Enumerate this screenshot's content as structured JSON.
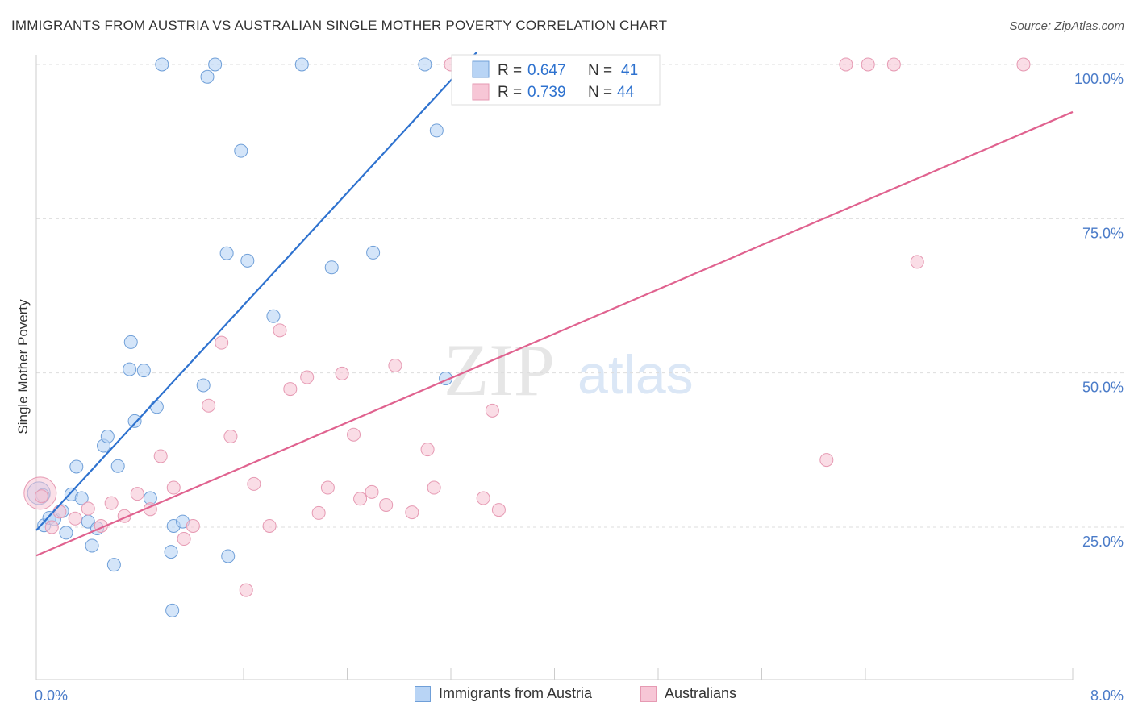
{
  "title": "IMMIGRANTS FROM AUSTRIA VS AUSTRALIAN SINGLE MOTHER POVERTY CORRELATION CHART",
  "source": "Source: ZipAtlas.com",
  "watermark": {
    "zip": "ZIP",
    "atlas": "atlas"
  },
  "colors": {
    "blue_fill": "#b8d4f5",
    "blue_stroke": "#6f9fd8",
    "blue_line": "#2e72cf",
    "pink_fill": "#f7c6d6",
    "pink_stroke": "#e69ab3",
    "pink_line": "#e0628f",
    "axis_label": "#4a7bc8",
    "grid": "#dddddd"
  },
  "legend_top": [
    {
      "r_label": "R = ",
      "r_value": "0.647",
      "n_label": "N = ",
      "n_value": "41"
    },
    {
      "r_label": "R = ",
      "r_value": "0.739",
      "n_label": "N = ",
      "n_value": "44"
    }
  ],
  "legend_bottom": [
    "Immigrants from Austria",
    "Australians"
  ],
  "chart_data": {
    "type": "scatter",
    "title": "IMMIGRANTS FROM AUSTRIA VS AUSTRALIAN SINGLE MOTHER POVERTY CORRELATION CHART",
    "xlabel": "",
    "ylabel": "Single Mother Poverty",
    "xlim": [
      0,
      8
    ],
    "ylim": [
      0,
      105
    ],
    "x_tick_labels": [
      "0.0%",
      "8.0%"
    ],
    "y_ticks": [
      25,
      50,
      75,
      100
    ],
    "y_tick_labels": [
      "25.0%",
      "50.0%",
      "75.0%",
      "100.0%"
    ],
    "grid": true,
    "legend_position": "top",
    "series": [
      {
        "name": "Immigrants from Austria",
        "r": 0.647,
        "n": 41,
        "trend": {
          "x": [
            0.0,
            3.4
          ],
          "y": [
            24.5,
            102
          ]
        },
        "points": [
          [
            0.05,
            30.2
          ],
          [
            0.06,
            25.3
          ],
          [
            0.1,
            26.5
          ],
          [
            0.14,
            26.3
          ],
          [
            0.2,
            27.6
          ],
          [
            0.23,
            24.1
          ],
          [
            0.27,
            30.3
          ],
          [
            0.31,
            34.8
          ],
          [
            0.35,
            29.7
          ],
          [
            0.4,
            25.9
          ],
          [
            0.43,
            22.0
          ],
          [
            0.47,
            24.8
          ],
          [
            0.52,
            38.2
          ],
          [
            0.55,
            39.7
          ],
          [
            0.6,
            18.9
          ],
          [
            0.63,
            34.9
          ],
          [
            0.72,
            50.6
          ],
          [
            0.73,
            55.0
          ],
          [
            0.76,
            42.2
          ],
          [
            0.83,
            50.4
          ],
          [
            0.88,
            29.7
          ],
          [
            0.93,
            44.5
          ],
          [
            0.97,
            100.0
          ],
          [
            1.04,
            21.0
          ],
          [
            1.05,
            11.5
          ],
          [
            1.06,
            25.2
          ],
          [
            1.13,
            25.9
          ],
          [
            1.29,
            48.0
          ],
          [
            1.32,
            98.0
          ],
          [
            1.38,
            100.0
          ],
          [
            1.47,
            69.4
          ],
          [
            1.48,
            20.3
          ],
          [
            1.58,
            86.0
          ],
          [
            1.63,
            68.2
          ],
          [
            1.83,
            59.2
          ],
          [
            2.05,
            100.0
          ],
          [
            2.28,
            67.1
          ],
          [
            2.6,
            69.5
          ],
          [
            3.0,
            100.0
          ],
          [
            3.09,
            89.3
          ],
          [
            3.16,
            49.1
          ]
        ]
      },
      {
        "name": "Australians",
        "r": 0.739,
        "n": 44,
        "trend": {
          "x": [
            0.0,
            8.0
          ],
          "y": [
            20.4,
            92.3
          ]
        },
        "points": [
          [
            0.04,
            30.0
          ],
          [
            0.12,
            25.0
          ],
          [
            0.18,
            27.5
          ],
          [
            0.3,
            26.4
          ],
          [
            0.4,
            28.0
          ],
          [
            0.5,
            25.2
          ],
          [
            0.58,
            28.9
          ],
          [
            0.68,
            26.8
          ],
          [
            0.78,
            30.4
          ],
          [
            0.88,
            27.9
          ],
          [
            0.96,
            36.5
          ],
          [
            1.06,
            31.4
          ],
          [
            1.14,
            23.1
          ],
          [
            1.21,
            25.2
          ],
          [
            1.33,
            44.7
          ],
          [
            1.43,
            54.9
          ],
          [
            1.5,
            39.7
          ],
          [
            1.62,
            14.8
          ],
          [
            1.68,
            32.0
          ],
          [
            1.8,
            25.2
          ],
          [
            1.88,
            56.9
          ],
          [
            1.96,
            47.4
          ],
          [
            2.09,
            49.3
          ],
          [
            2.18,
            27.3
          ],
          [
            2.25,
            31.4
          ],
          [
            2.36,
            49.9
          ],
          [
            2.45,
            40.0
          ],
          [
            2.5,
            29.6
          ],
          [
            2.59,
            30.7
          ],
          [
            2.7,
            28.6
          ],
          [
            2.77,
            51.2
          ],
          [
            2.9,
            27.4
          ],
          [
            3.02,
            37.6
          ],
          [
            3.07,
            31.4
          ],
          [
            3.2,
            100.0
          ],
          [
            3.45,
            29.7
          ],
          [
            3.57,
            27.8
          ],
          [
            3.52,
            43.9
          ],
          [
            6.1,
            35.9
          ],
          [
            6.25,
            100.0
          ],
          [
            6.42,
            100.0
          ],
          [
            6.62,
            100.0
          ],
          [
            6.8,
            68.0
          ],
          [
            7.62,
            100.0
          ]
        ]
      }
    ]
  }
}
